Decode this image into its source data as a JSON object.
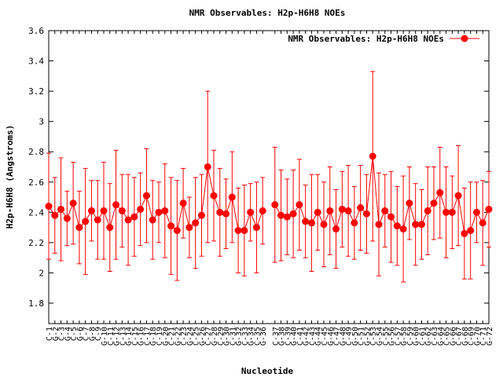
{
  "chart_data": {
    "type": "line",
    "title": "NMR Observables: H2p-H6H8 NOEs",
    "x_label": "Nucleotide",
    "y_label": "H2p-H6H8 (Angstroms)",
    "legend": "upper right",
    "categories": [
      "C-1",
      "G-2",
      "C-3",
      "G-4",
      "C-5",
      "G-6",
      "C-7",
      "G-8",
      "C-9",
      "G-10",
      "C-11",
      "G-12",
      "C-13",
      "G-14",
      "C-15",
      "G-16",
      "C-17",
      "G-18",
      "C-19",
      "G-20",
      "C-21",
      "G-22",
      "C-23",
      "G-24",
      "C-25",
      "G-26",
      "C-27",
      "G-28",
      "C-29",
      "G-30",
      "C-31",
      "G-32",
      "C-33",
      "G-34",
      "C-35",
      "G-36",
      null,
      "C-37",
      "G-38",
      "C-39",
      "G-40",
      "C-41",
      "G-42",
      "C-43",
      "G-44",
      "C-45",
      "G-46",
      "C-47",
      "G-48",
      "C-49",
      "G-50",
      "C-51",
      "G-52",
      "C-53",
      "G-54",
      "C-55",
      "G-56",
      "C-57",
      "G-58",
      "C-59",
      "G-60",
      "C-61",
      "G-62",
      "C-63",
      "G-64",
      "C-65",
      "G-66",
      "C-67",
      "G-68",
      "C-69",
      "G-70",
      "C-71",
      "G-72"
    ],
    "series": [
      {
        "name": "NMR Observables: H2p-H6H8 NOEs",
        "color": "#ff0000",
        "values": [
          2.44,
          2.38,
          2.42,
          2.36,
          2.46,
          2.3,
          2.34,
          2.41,
          2.35,
          2.41,
          2.3,
          2.45,
          2.41,
          2.35,
          2.37,
          2.42,
          2.51,
          2.35,
          2.4,
          2.41,
          2.31,
          2.28,
          2.46,
          2.3,
          2.33,
          2.38,
          2.7,
          2.51,
          2.4,
          2.39,
          2.5,
          2.28,
          2.28,
          2.4,
          2.3,
          2.41,
          null,
          2.45,
          2.38,
          2.37,
          2.39,
          2.45,
          2.34,
          2.33,
          2.4,
          2.32,
          2.41,
          2.29,
          2.42,
          2.41,
          2.33,
          2.43,
          2.39,
          2.77,
          2.32,
          2.41,
          2.37,
          2.31,
          2.29,
          2.46,
          2.32,
          2.32,
          2.41,
          2.46,
          2.53,
          2.4,
          2.4,
          2.51,
          2.26,
          2.28,
          2.4,
          2.33,
          2.42
        ],
        "errors": [
          0.35,
          0.25,
          0.34,
          0.18,
          0.27,
          0.24,
          0.35,
          0.2,
          0.26,
          0.32,
          0.29,
          0.36,
          0.24,
          0.3,
          0.26,
          0.24,
          0.31,
          0.26,
          0.2,
          0.31,
          0.32,
          0.33,
          0.23,
          0.2,
          0.3,
          0.27,
          0.5,
          0.3,
          0.29,
          0.23,
          0.3,
          0.28,
          0.3,
          0.19,
          0.3,
          0.22,
          null,
          0.38,
          0.3,
          0.25,
          0.29,
          0.3,
          0.24,
          0.32,
          0.25,
          0.28,
          0.29,
          0.26,
          0.25,
          0.3,
          0.24,
          0.28,
          0.26,
          0.56,
          0.34,
          0.24,
          0.3,
          0.26,
          0.35,
          0.24,
          0.27,
          0.23,
          0.29,
          0.24,
          0.3,
          0.3,
          0.24,
          0.33,
          0.3,
          0.32,
          0.2,
          0.28,
          0.25
        ]
      }
    ],
    "ylim": [
      1.665,
      3.6
    ],
    "yticks": [
      1.8,
      2,
      2.2,
      2.4,
      2.6,
      2.8,
      3,
      3.2,
      3.4,
      3.6
    ]
  }
}
